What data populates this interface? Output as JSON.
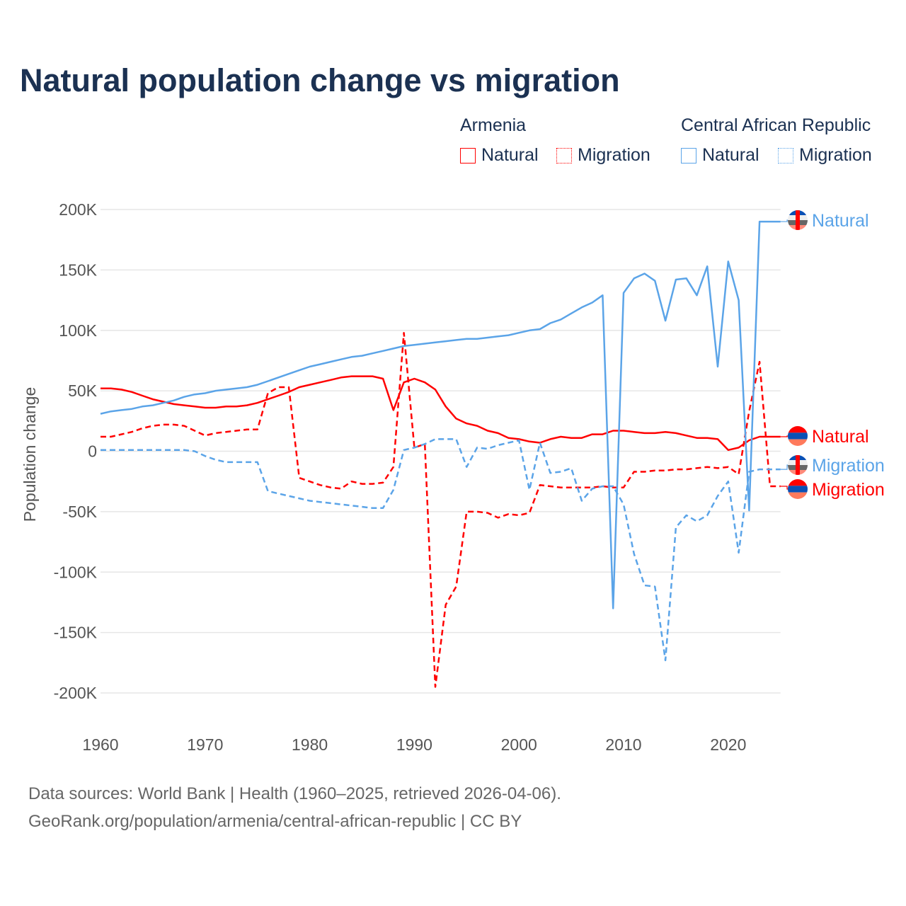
{
  "chart_data": {
    "type": "line",
    "title": "Natural population change vs migration",
    "ylabel": "Population change",
    "xlabel": "",
    "ylim": [
      -200000,
      200000
    ],
    "xlim": [
      1960,
      2025
    ],
    "yticks": [
      200000,
      150000,
      100000,
      50000,
      0,
      -50000,
      -100000,
      -150000,
      -200000
    ],
    "ytick_labels": [
      "200K",
      "150K",
      "100K",
      "50K",
      "0",
      "-50K",
      "-100K",
      "-150K",
      "-200K"
    ],
    "xticks": [
      1960,
      1970,
      1980,
      1990,
      2000,
      2010,
      2020
    ],
    "xtick_labels": [
      "1960",
      "1970",
      "1980",
      "1990",
      "2000",
      "2010",
      "2020"
    ],
    "grid": true,
    "legend_placement": "top-right",
    "legend": {
      "groups": [
        {
          "name": "Armenia",
          "items": [
            "Natural",
            "Migration"
          ]
        },
        {
          "name": "Central African Republic",
          "items": [
            "Natural",
            "Migration"
          ]
        }
      ]
    },
    "x_start": 1960,
    "series": [
      {
        "country": "Armenia",
        "name": "Natural",
        "label": "Natural",
        "color": "#ff0000",
        "dashed": false,
        "values": [
          52000,
          52000,
          51000,
          49000,
          46000,
          43000,
          41000,
          39000,
          38000,
          37000,
          36000,
          36000,
          37000,
          37000,
          38000,
          40000,
          43000,
          46000,
          49000,
          53000,
          55000,
          57000,
          59000,
          61000,
          62000,
          62000,
          62000,
          60000,
          34000,
          57000,
          60000,
          57000,
          51000,
          37000,
          27000,
          23000,
          21000,
          17000,
          15000,
          11000,
          10000,
          8000,
          7000,
          10000,
          12000,
          11000,
          11000,
          14000,
          14000,
          17000,
          17000,
          16000,
          15000,
          15000,
          16000,
          15000,
          13000,
          11000,
          11000,
          10000,
          1000,
          3000,
          9000,
          12000,
          12000,
          12000
        ]
      },
      {
        "country": "Armenia",
        "name": "Migration",
        "label": "Migration",
        "color": "#ff0000",
        "dashed": true,
        "values": [
          12000,
          12000,
          14000,
          16000,
          19000,
          21000,
          22000,
          22000,
          21000,
          17000,
          13000,
          15000,
          16000,
          17000,
          18000,
          18000,
          48000,
          53000,
          53000,
          -22000,
          -25000,
          -28000,
          -30000,
          -31000,
          -25000,
          -27000,
          -27000,
          -26000,
          -13000,
          98000,
          3000,
          6000,
          -195000,
          -127000,
          -112000,
          -50000,
          -50000,
          -51000,
          -55000,
          -52000,
          -53000,
          -51000,
          -28000,
          -29000,
          -30000,
          -30000,
          -30000,
          -30000,
          -29000,
          -30000,
          -30000,
          -17000,
          -17000,
          -16000,
          -16000,
          -15000,
          -15000,
          -14000,
          -13000,
          -14000,
          -13000,
          -19000,
          33000,
          74000,
          -29000,
          -29000
        ]
      },
      {
        "country": "Central African Republic",
        "name": "Natural",
        "label": "Natural",
        "color": "#5ba4e8",
        "dashed": false,
        "values": [
          31000,
          33000,
          34000,
          35000,
          37000,
          38000,
          40000,
          42000,
          45000,
          47000,
          48000,
          50000,
          51000,
          52000,
          53000,
          55000,
          58000,
          61000,
          64000,
          67000,
          70000,
          72000,
          74000,
          76000,
          78000,
          79000,
          81000,
          83000,
          85000,
          87000,
          88000,
          89000,
          90000,
          91000,
          92000,
          93000,
          93000,
          94000,
          95000,
          96000,
          98000,
          100000,
          101000,
          106000,
          109000,
          114000,
          119000,
          123000,
          129000,
          -130000,
          131000,
          143000,
          147000,
          141000,
          108000,
          142000,
          143000,
          129000,
          153000,
          70000,
          157000,
          125000,
          -49000,
          190000,
          190000,
          190000
        ]
      },
      {
        "country": "Central African Republic",
        "name": "Migration",
        "label": "Migration",
        "color": "#5ba4e8",
        "dashed": true,
        "values": [
          1000,
          1000,
          1000,
          1000,
          1000,
          1000,
          1000,
          1000,
          1000,
          0,
          -4000,
          -7000,
          -9000,
          -9000,
          -9000,
          -9000,
          -33000,
          -35000,
          -37000,
          -39000,
          -41000,
          -42000,
          -43000,
          -44000,
          -45000,
          -46000,
          -47000,
          -47000,
          -32000,
          1000,
          3000,
          6000,
          10000,
          10000,
          10000,
          -13000,
          3000,
          2000,
          5000,
          7000,
          9000,
          -32000,
          7000,
          -18000,
          -17000,
          -14000,
          -41000,
          -31000,
          -29000,
          -29000,
          -44000,
          -85000,
          -111000,
          -112000,
          -173000,
          -63000,
          -53000,
          -58000,
          -53000,
          -37000,
          -25000,
          -84000,
          -17000,
          -15000,
          -15000,
          -15000
        ]
      }
    ]
  },
  "footer": {
    "line1": "Data sources: World Bank | Health (1960–2025, retrieved 2026-04-06).",
    "line2": "GeoRank.org/population/armenia/central-african-republic | CC BY"
  }
}
